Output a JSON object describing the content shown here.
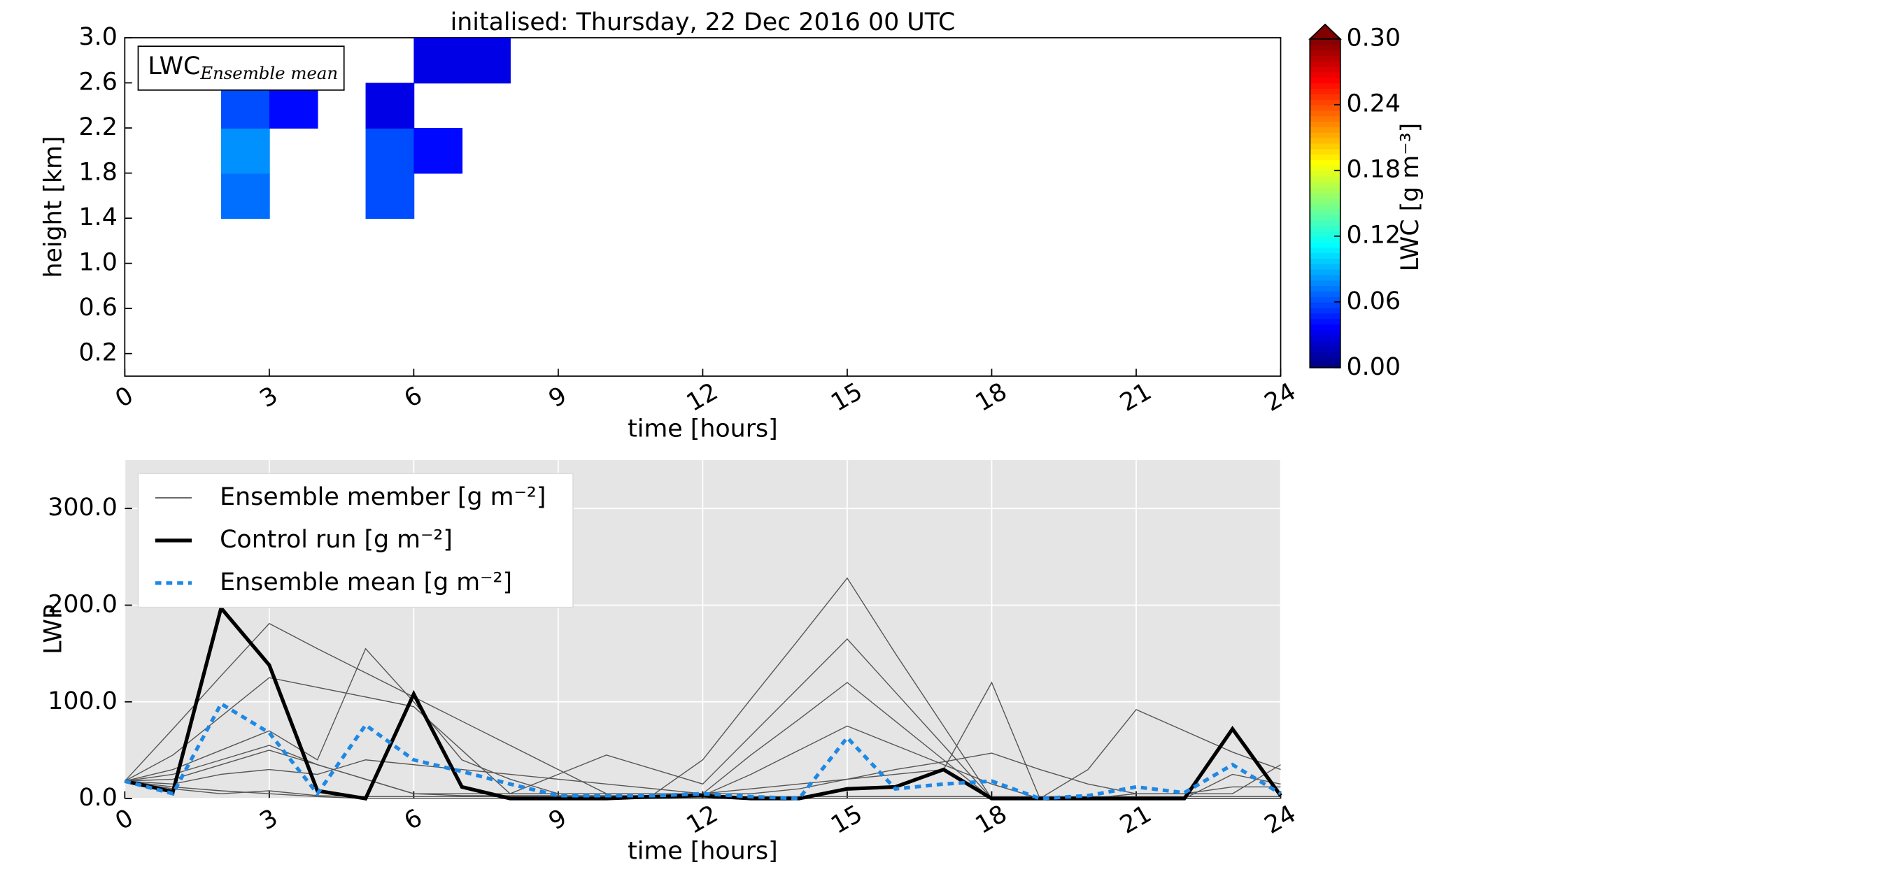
{
  "chart_data": [
    {
      "type": "heatmap",
      "title": "initalised: Thursday, 22 Dec 2016 00 UTC",
      "annotation": {
        "text": "LWC",
        "subscript": "Ensemble mean"
      },
      "xlabel": "time [hours]",
      "ylabel": "height [km]",
      "x": [
        2,
        3,
        4,
        5,
        6,
        7
      ],
      "y": [
        1.4,
        1.8,
        2.2,
        2.6
      ],
      "values": [
        [
          0.07,
          null,
          null,
          0.06,
          null,
          null
        ],
        [
          0.08,
          null,
          null,
          0.06,
          0.04,
          null
        ],
        [
          0.06,
          0.04,
          null,
          0.03,
          null,
          null
        ],
        [
          null,
          null,
          null,
          null,
          0.03,
          0.03
        ]
      ],
      "xlim": [
        0,
        24
      ],
      "xticks": [
        0,
        3,
        6,
        9,
        12,
        15,
        18,
        21,
        24
      ],
      "ylim": [
        0,
        3.0
      ],
      "yticks": [
        0.2,
        0.6,
        {
          "value": 1,
          "label": "1.0"
        },
        1.4,
        1.8,
        2.2,
        2.6,
        {
          "value": 3,
          "label": "3.0"
        }
      ],
      "colorbar": {
        "label": "LWC [g m⁻³]",
        "lim": [
          0,
          0.3
        ],
        "colormap": "jet",
        "ticks": [
          {
            "value": 0,
            "label": "0.00"
          },
          0.06,
          0.12,
          0.18,
          0.24,
          {
            "value": 0.3,
            "label": "0.30"
          }
        ]
      }
    },
    {
      "type": "line",
      "xlabel": "time [hours]",
      "ylabel": "LWP",
      "x": [
        0,
        1,
        2,
        3,
        4,
        5,
        6,
        7,
        8,
        9,
        10,
        11,
        12,
        13,
        14,
        15,
        16,
        17,
        18,
        19,
        20,
        21,
        22,
        23,
        24
      ],
      "ensemble_members": {
        "name": "Ensemble member [g m⁻²]",
        "color": "#555555",
        "values": [
          [
            18,
            72,
            127,
            181,
            155,
            130,
            105,
            80,
            55,
            30,
            5,
            5,
            40,
            103,
            165,
            228,
            150,
            75,
            0,
            0,
            0,
            0,
            0,
            0,
            0
          ],
          [
            18,
            45,
            85,
            125,
            115,
            105,
            95,
            50,
            5,
            25,
            45,
            30,
            15,
            65,
            115,
            165,
            110,
            55,
            0,
            0,
            0,
            0,
            0,
            0,
            0
          ],
          [
            18,
            30,
            50,
            70,
            40,
            155,
            100,
            40,
            20,
            5,
            5,
            5,
            5,
            45,
            82,
            120,
            80,
            40,
            0,
            0,
            0,
            0,
            0,
            0,
            0
          ],
          [
            18,
            25,
            40,
            55,
            35,
            20,
            5,
            3,
            3,
            3,
            3,
            3,
            3,
            25,
            50,
            75,
            55,
            35,
            15,
            0,
            30,
            92,
            70,
            48,
            30
          ],
          [
            18,
            20,
            35,
            50,
            35,
            20,
            5,
            5,
            5,
            5,
            5,
            5,
            5,
            5,
            10,
            20,
            25,
            30,
            120,
            0,
            0,
            5,
            5,
            5,
            35
          ],
          [
            18,
            15,
            25,
            30,
            25,
            40,
            35,
            30,
            25,
            20,
            15,
            10,
            5,
            10,
            15,
            20,
            30,
            38,
            47,
            30,
            15,
            5,
            5,
            12,
            12
          ],
          [
            18,
            10,
            5,
            8,
            3,
            2,
            2,
            2,
            2,
            2,
            2,
            2,
            2,
            2,
            2,
            2,
            2,
            2,
            2,
            2,
            2,
            2,
            2,
            2,
            2
          ],
          [
            18,
            12,
            8,
            5,
            2,
            0,
            0,
            0,
            0,
            0,
            0,
            0,
            0,
            0,
            0,
            0,
            0,
            0,
            0,
            0,
            0,
            0,
            0,
            25,
            15
          ]
        ]
      },
      "series": [
        {
          "name": "Control run [g m⁻²]",
          "color": "#000000",
          "style": "solid",
          "values": [
            18,
            7,
            197,
            138,
            8,
            0,
            108,
            12,
            0,
            0,
            0,
            2,
            3,
            0,
            0,
            10,
            12,
            30,
            0,
            0,
            0,
            0,
            0,
            72,
            3
          ]
        },
        {
          "name": "Ensemble mean [g m⁻²]",
          "color": "#1e88e5",
          "style": "dotted",
          "values": [
            18,
            5,
            98,
            68,
            5,
            76,
            40,
            28,
            15,
            3,
            3,
            3,
            5,
            2,
            0,
            63,
            10,
            15,
            18,
            0,
            3,
            12,
            6,
            35,
            5
          ]
        }
      ],
      "xlim": [
        0,
        24
      ],
      "xticks": [
        0,
        3,
        6,
        9,
        12,
        15,
        18,
        21,
        24
      ],
      "ylim": [
        0,
        350
      ],
      "yticks": [
        {
          "value": 0,
          "label": "0.0"
        },
        {
          "value": 100,
          "label": "100.0"
        },
        {
          "value": 200,
          "label": "200.0"
        },
        {
          "value": 300,
          "label": "300.0"
        }
      ],
      "grid": true,
      "background": "#e5e5e5"
    }
  ]
}
